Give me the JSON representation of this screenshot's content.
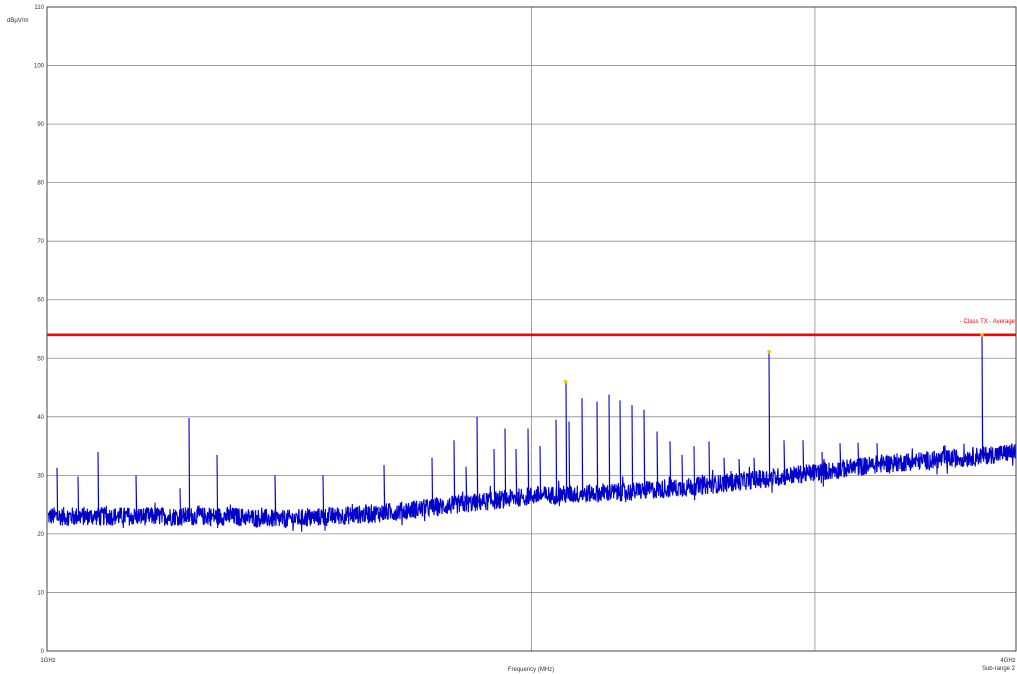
{
  "chart_data": {
    "type": "line",
    "title": "",
    "xlabel": "Frequency (MHz)",
    "ylabel": "dBµV/m",
    "xscale": "log",
    "xlim": [
      1000,
      4000
    ],
    "ylim": [
      0,
      110
    ],
    "x_tick_labels": [
      "1GHz",
      "4GHz"
    ],
    "y_ticks": [
      0,
      10,
      20,
      30,
      40,
      50,
      60,
      70,
      80,
      90,
      100,
      110
    ],
    "y_tick_labels": [
      "0",
      "10",
      "20",
      "30",
      "40",
      "50",
      "60",
      "70",
      "80",
      "90",
      "100",
      "110"
    ],
    "x_gridlines": [
      1000,
      2000,
      3000,
      4000
    ],
    "grid": true,
    "subrange_label": "Sub-range 2",
    "limit_line": {
      "name": "- Class TX - Average",
      "value": 54,
      "color": "#ff0000"
    },
    "series": [
      {
        "color": "#0000cc",
        "noise_floor": [
          [
            1000,
            23
          ],
          [
            1300,
            23
          ],
          [
            1400,
            22.5
          ],
          [
            1600,
            23.5
          ],
          [
            1800,
            25
          ],
          [
            2000,
            26.5
          ],
          [
            2300,
            27.2
          ],
          [
            2500,
            28
          ],
          [
            2700,
            29
          ],
          [
            3000,
            30.5
          ],
          [
            3300,
            32
          ],
          [
            3700,
            33
          ],
          [
            4000,
            34
          ]
        ],
        "peaks": [
          [
            1015,
            31.3
          ],
          [
            1045,
            29.8
          ],
          [
            1075,
            34
          ],
          [
            1135,
            30
          ],
          [
            1210,
            27.8
          ],
          [
            1225,
            39.8
          ],
          [
            1275,
            33.5
          ],
          [
            1385,
            30
          ],
          [
            1485,
            30
          ],
          [
            1620,
            31.8
          ],
          [
            1735,
            33
          ],
          [
            1790,
            36
          ],
          [
            1820,
            31.5
          ],
          [
            1850,
            40
          ],
          [
            1895,
            34.5
          ],
          [
            1925,
            38
          ],
          [
            1955,
            34.5
          ],
          [
            1990,
            38
          ],
          [
            2025,
            35
          ],
          [
            2070,
            39.5
          ],
          [
            2100,
            46
          ],
          [
            2110,
            39.2
          ],
          [
            2150,
            43.2
          ],
          [
            2195,
            42.6
          ],
          [
            2235,
            43.8
          ],
          [
            2270,
            42.8
          ],
          [
            2310,
            42
          ],
          [
            2350,
            41.2
          ],
          [
            2395,
            37.5
          ],
          [
            2440,
            35.8
          ],
          [
            2480,
            33.5
          ],
          [
            2525,
            35
          ],
          [
            2580,
            35.8
          ],
          [
            2635,
            33
          ],
          [
            2690,
            32.8
          ],
          [
            2750,
            33
          ],
          [
            2810,
            51.1
          ],
          [
            2870,
            36
          ],
          [
            2950,
            36
          ],
          [
            3030,
            34
          ],
          [
            3110,
            35.5
          ],
          [
            3190,
            35.6
          ],
          [
            3280,
            35.5
          ],
          [
            3380,
            31.3
          ],
          [
            3810,
            54
          ]
        ],
        "markers": [
          [
            2100,
            46
          ],
          [
            2810,
            51.1
          ],
          [
            3810,
            54
          ]
        ]
      }
    ]
  }
}
